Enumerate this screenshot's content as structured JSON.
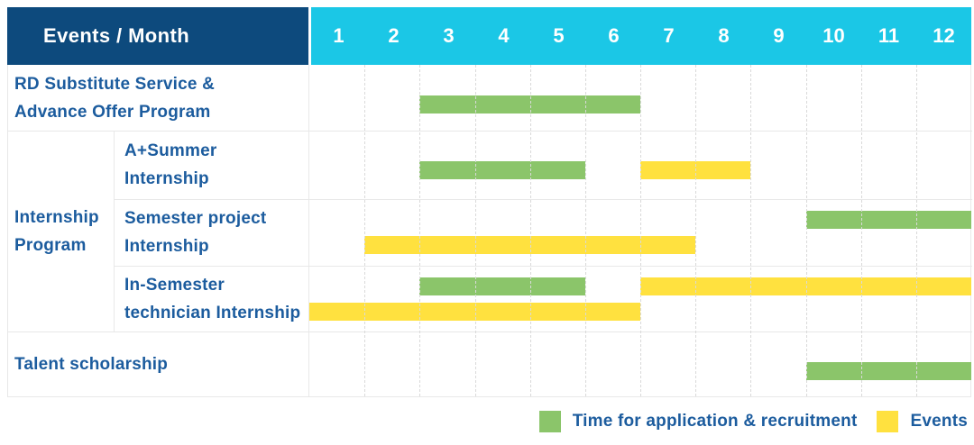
{
  "header": {
    "corner": "Events / Month",
    "months": [
      "1",
      "2",
      "3",
      "4",
      "5",
      "6",
      "7",
      "8",
      "9",
      "10",
      "11",
      "12"
    ]
  },
  "rows": [
    {
      "id": "rd-substitute",
      "label_lines": [
        "RD Substitute Service &",
        "Advance Offer Program"
      ],
      "in_group": false
    },
    {
      "id": "a-summer",
      "label_lines": [
        "A+Summer",
        "Internship"
      ],
      "in_group": true
    },
    {
      "id": "semester-project",
      "label_lines": [
        "Semester project",
        "Internship"
      ],
      "in_group": true
    },
    {
      "id": "in-semester",
      "label_lines": [
        "In-Semester",
        "technician Internship"
      ],
      "in_group": true
    },
    {
      "id": "talent-scholarship",
      "label_lines": [
        "Talent scholarship"
      ],
      "in_group": false
    }
  ],
  "group": {
    "label_lines": [
      "Internship",
      "Program"
    ],
    "child_row_ids": [
      "a-summer",
      "semester-project",
      "in-semester"
    ]
  },
  "chart_data": {
    "type": "gantt",
    "unit": "month",
    "axis_range": [
      1,
      12
    ],
    "categories_legend": {
      "application": "Time for application & recruitment",
      "event": "Events"
    },
    "bars": [
      {
        "row": "rd-substitute",
        "category": "application",
        "from_month": 3,
        "to_month": 6,
        "lane": "single"
      },
      {
        "row": "a-summer",
        "category": "application",
        "from_month": 3,
        "to_month": 5,
        "lane": "single"
      },
      {
        "row": "a-summer",
        "category": "event",
        "from_month": 7,
        "to_month": 8,
        "lane": "single"
      },
      {
        "row": "semester-project",
        "category": "application",
        "from_month": 10,
        "to_month": 12,
        "lane": "top"
      },
      {
        "row": "semester-project",
        "category": "event",
        "from_month": 2,
        "to_month": 7,
        "lane": "bottom"
      },
      {
        "row": "in-semester",
        "category": "application",
        "from_month": 3,
        "to_month": 5,
        "lane": "top"
      },
      {
        "row": "in-semester",
        "category": "event",
        "from_month": 7,
        "to_month": 12,
        "lane": "top"
      },
      {
        "row": "in-semester",
        "category": "event",
        "from_month": 1,
        "to_month": 6,
        "lane": "bottom"
      },
      {
        "row": "talent-scholarship",
        "category": "application",
        "from_month": 10,
        "to_month": 12,
        "lane": "single"
      }
    ]
  },
  "legend": {
    "items": [
      {
        "label": "Time for application & recruitment",
        "category": "application"
      },
      {
        "label": "Events",
        "category": "event"
      }
    ]
  },
  "colors": {
    "navy": "#0D4A7D",
    "cyan": "#1BC7E6",
    "green": "#8BC56A",
    "yellow": "#FFE13F",
    "label_blue": "#1C5C9E"
  }
}
